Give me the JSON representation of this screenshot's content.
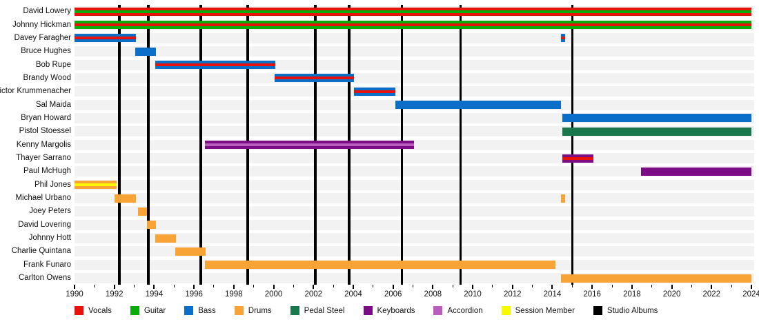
{
  "chart_data": {
    "type": "gantt",
    "subtype": "band-member-timeline",
    "title": "",
    "xlabel": "",
    "ylabel": "",
    "x_axis": {
      "min": 1990,
      "max": 2024,
      "major_tick_interval": 2,
      "minor_tick_interval": 1,
      "tick_labels": [
        "1990",
        "1992",
        "1994",
        "1996",
        "1998",
        "2000",
        "2002",
        "2004",
        "2006",
        "2008",
        "2010",
        "2012",
        "2014",
        "2016",
        "2018",
        "2020",
        "2022",
        "2024"
      ]
    },
    "role_colors": {
      "vocals": "#e8120a",
      "guitar": "#0cab0c",
      "bass": "#0b6fc9",
      "drums": "#f8a335",
      "pedal_steel": "#18784b",
      "keyboards": "#7b0c86",
      "accordion": "#b85cbe",
      "session_member": "#f8f800",
      "studio_albums": "#000000"
    },
    "legend": [
      {
        "label": "Vocals",
        "role": "vocals"
      },
      {
        "label": "Guitar",
        "role": "guitar"
      },
      {
        "label": "Bass",
        "role": "bass"
      },
      {
        "label": "Drums",
        "role": "drums"
      },
      {
        "label": "Pedal Steel",
        "role": "pedal_steel"
      },
      {
        "label": "Keyboards",
        "role": "keyboards"
      },
      {
        "label": "Accordion",
        "role": "accordion"
      },
      {
        "label": "Session Member",
        "role": "session_member"
      },
      {
        "label": "Studio Albums",
        "role": "studio_albums"
      }
    ],
    "members": [
      {
        "name": "David Lowery",
        "bars": [
          {
            "start": 1990,
            "end": 2024,
            "role": "vocals",
            "stripe": "guitar"
          }
        ]
      },
      {
        "name": "Johnny Hickman",
        "bars": [
          {
            "start": 1990,
            "end": 2024,
            "role": "guitar",
            "stripe": "vocals"
          }
        ]
      },
      {
        "name": "Davey Faragher",
        "bars": [
          {
            "start": 1990,
            "end": 1993.1,
            "role": "bass",
            "stripe": "vocals"
          },
          {
            "start": 2014.45,
            "end": 2014.65,
            "role": "bass",
            "stripe": "vocals"
          }
        ]
      },
      {
        "name": "Bruce Hughes",
        "bars": [
          {
            "start": 1993.05,
            "end": 1994.1,
            "role": "bass",
            "stripe": null
          }
        ]
      },
      {
        "name": "Bob Rupe",
        "bars": [
          {
            "start": 1994.05,
            "end": 2000.1,
            "role": "bass",
            "stripe": "vocals"
          }
        ]
      },
      {
        "name": "Brandy Wood",
        "bars": [
          {
            "start": 2000.05,
            "end": 2004.05,
            "role": "bass",
            "stripe": "vocals"
          }
        ]
      },
      {
        "name": "Victor Krummenacher",
        "bars": [
          {
            "start": 2004.05,
            "end": 2006.1,
            "role": "bass",
            "stripe": "vocals"
          }
        ]
      },
      {
        "name": "Sal Maida",
        "bars": [
          {
            "start": 2006.1,
            "end": 2014.45,
            "role": "bass",
            "stripe": null
          }
        ]
      },
      {
        "name": "Bryan Howard",
        "bars": [
          {
            "start": 2014.5,
            "end": 2024,
            "role": "bass",
            "stripe": null
          }
        ]
      },
      {
        "name": "Pistol Stoessel",
        "bars": [
          {
            "start": 2014.5,
            "end": 2024,
            "role": "pedal_steel",
            "stripe": null
          }
        ]
      },
      {
        "name": "Kenny Margolis",
        "bars": [
          {
            "start": 1996.55,
            "end": 2007.05,
            "role": "keyboards",
            "stripe": "accordion"
          }
        ]
      },
      {
        "name": "Thayer Sarrano",
        "bars": [
          {
            "start": 2014.5,
            "end": 2016.05,
            "role": "keyboards",
            "stripe": "vocals"
          }
        ]
      },
      {
        "name": "Paul McHugh",
        "bars": [
          {
            "start": 2018.45,
            "end": 2024,
            "role": "keyboards",
            "stripe": null
          }
        ]
      },
      {
        "name": "Phil Jones",
        "bars": [
          {
            "start": 1990,
            "end": 1992.1,
            "role": "drums",
            "stripe": "session_member"
          }
        ]
      },
      {
        "name": "Michael Urbano",
        "bars": [
          {
            "start": 1992.0,
            "end": 1993.1,
            "role": "drums",
            "stripe": null
          },
          {
            "start": 2014.45,
            "end": 2014.65,
            "role": "drums",
            "stripe": null
          }
        ]
      },
      {
        "name": "Joey Peters",
        "bars": [
          {
            "start": 1993.2,
            "end": 1993.65,
            "role": "drums",
            "stripe": null
          }
        ]
      },
      {
        "name": "David Lovering",
        "bars": [
          {
            "start": 1993.65,
            "end": 1994.1,
            "role": "drums",
            "stripe": null
          }
        ]
      },
      {
        "name": "Johnny Hott",
        "bars": [
          {
            "start": 1994.05,
            "end": 1995.1,
            "role": "drums",
            "stripe": null
          }
        ]
      },
      {
        "name": "Charlie Quintana",
        "bars": [
          {
            "start": 1995.05,
            "end": 1996.6,
            "role": "drums",
            "stripe": null
          }
        ]
      },
      {
        "name": "Frank Funaro",
        "bars": [
          {
            "start": 1996.55,
            "end": 2014.15,
            "role": "drums",
            "stripe": null
          }
        ]
      },
      {
        "name": "Carlton Owens",
        "bars": [
          {
            "start": 2014.45,
            "end": 2024,
            "role": "drums",
            "stripe": null
          }
        ]
      }
    ],
    "studio_album_lines": [
      1992.25,
      1993.7,
      1996.35,
      1998.7,
      2002.1,
      2003.8,
      2006.45,
      2009.4,
      2015.0
    ]
  }
}
